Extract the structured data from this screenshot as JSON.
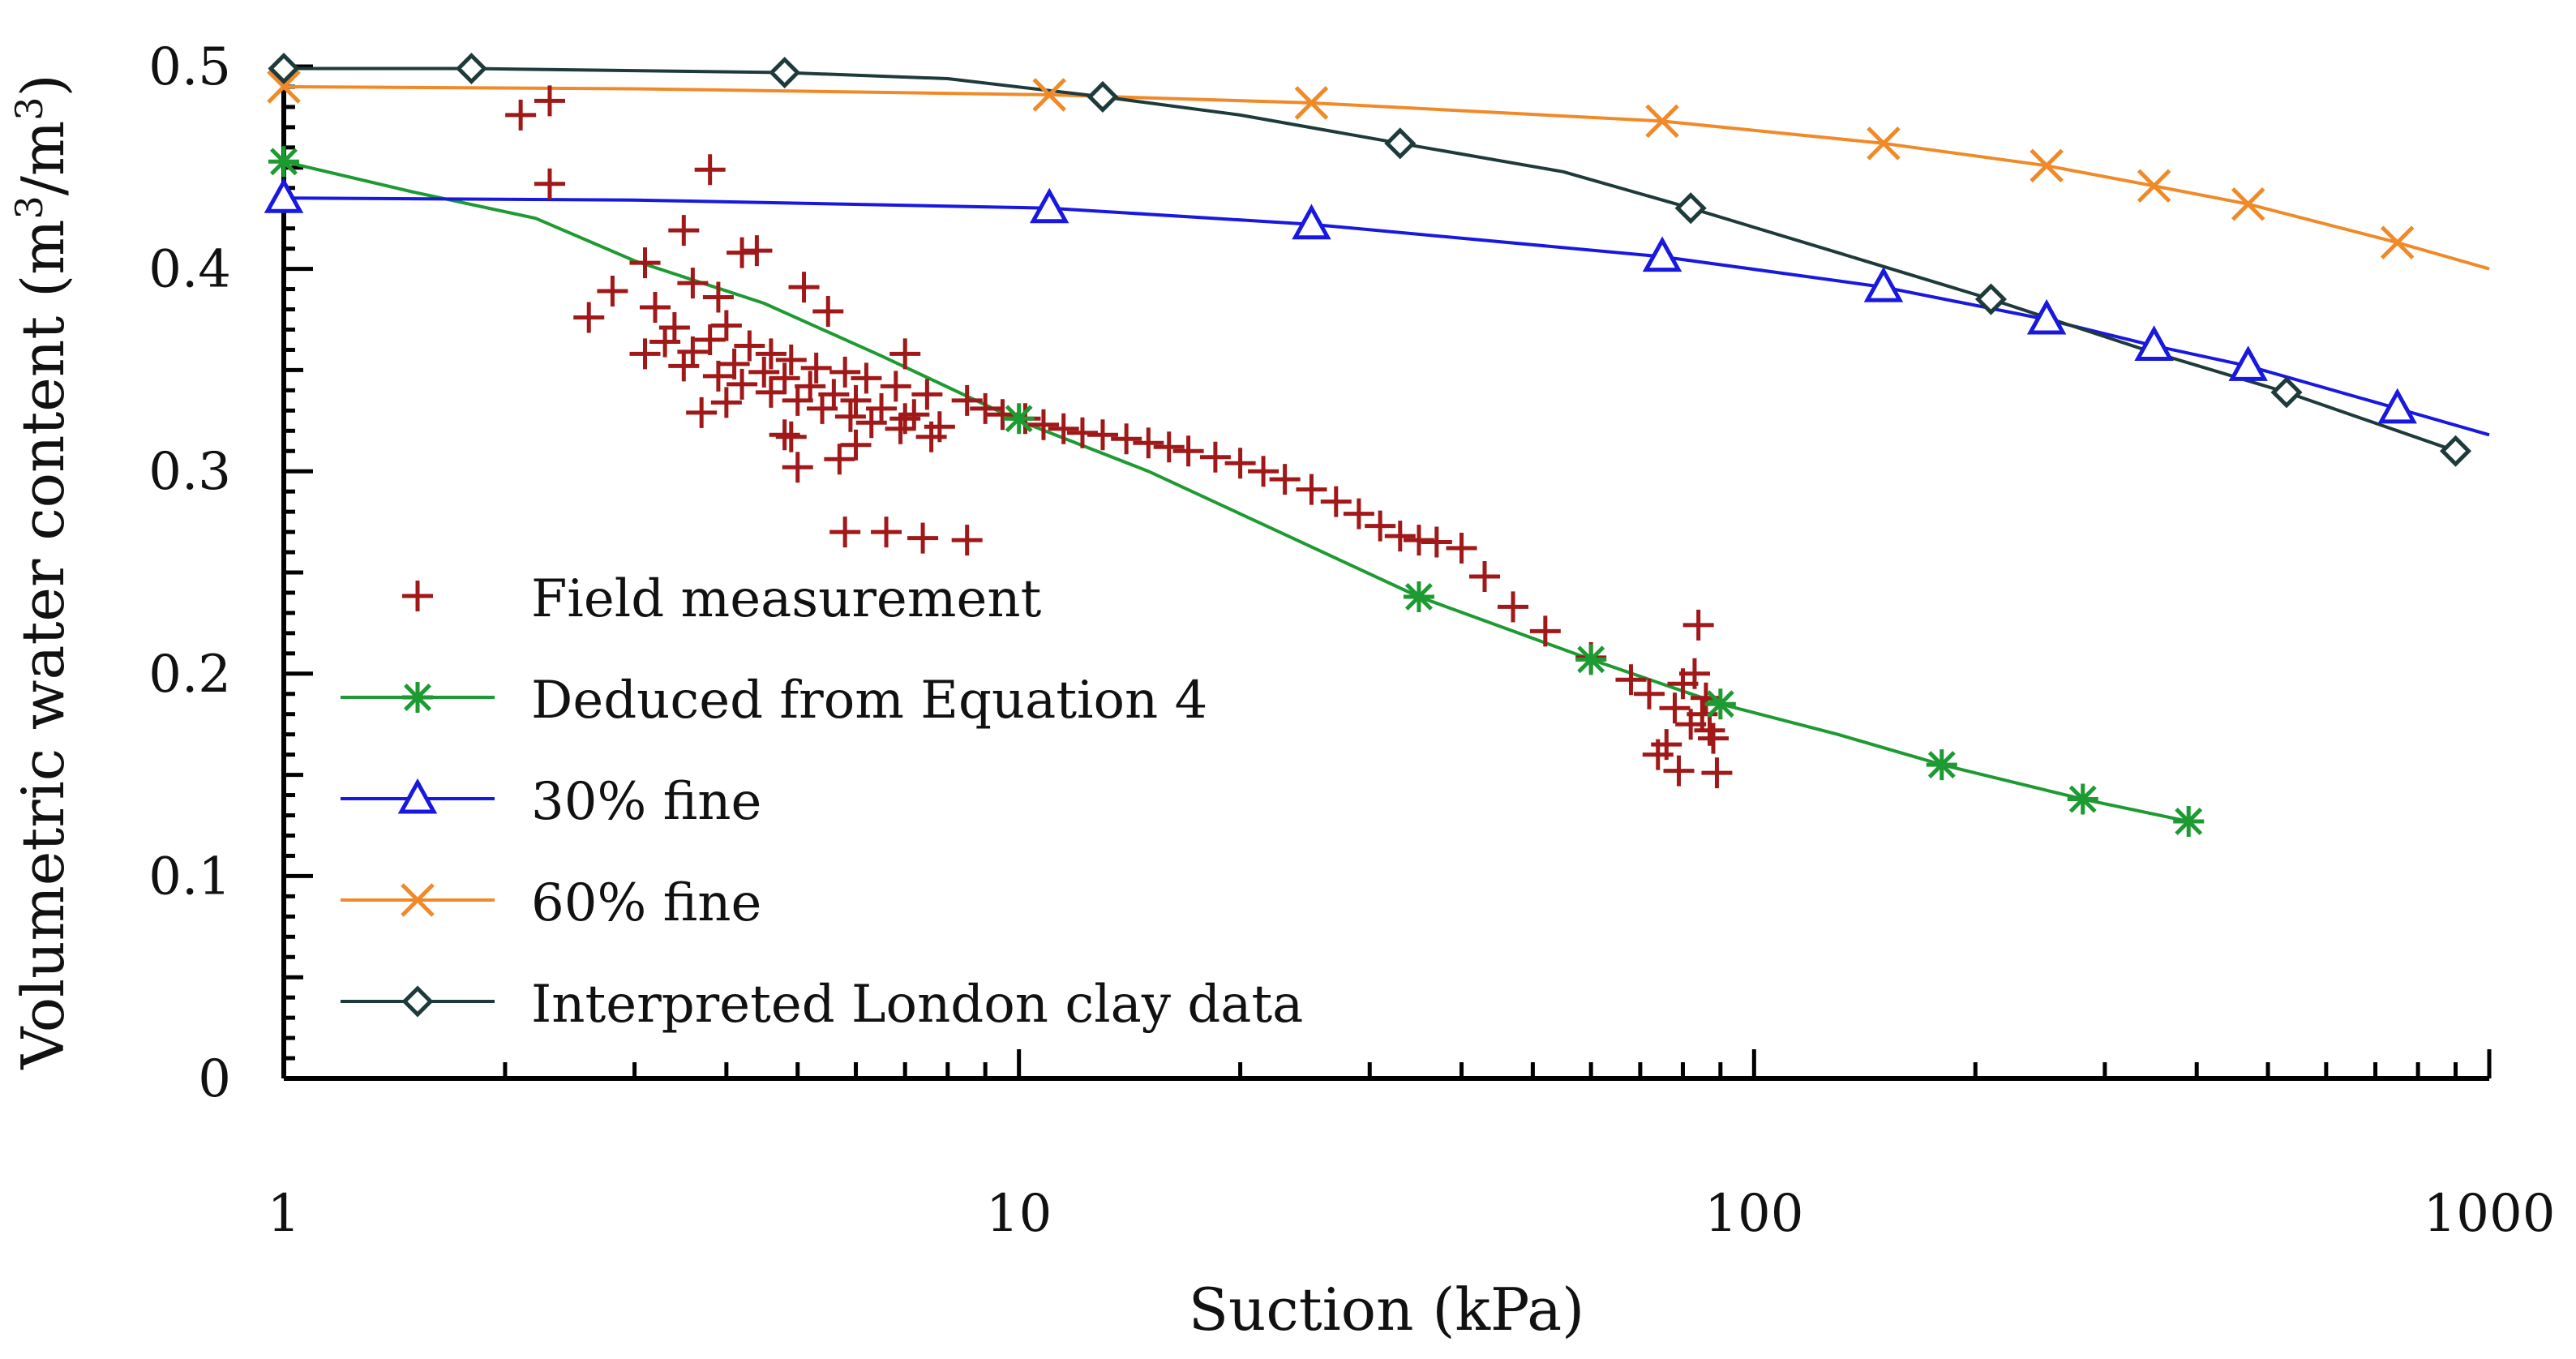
{
  "chart_data": {
    "type": "scatter+line",
    "title": "",
    "xlabel": "Suction (kPa)",
    "ylabel_main": "Volumetric water content (m",
    "ylabel_sup1": "3",
    "ylabel_mid": "/m",
    "ylabel_sup2": "3",
    "ylabel_end": ")",
    "xscale": "log",
    "xlim": [
      1,
      1000
    ],
    "ylim": [
      0,
      0.5
    ],
    "x_ticks": [
      1,
      10,
      100,
      1000
    ],
    "x_tick_labels": [
      "1",
      "10",
      "100",
      "1000"
    ],
    "y_ticks": [
      0,
      0.1,
      0.2,
      0.3,
      0.4,
      0.5
    ],
    "y_tick_labels": [
      "0",
      "0.1",
      "0.2",
      "0.3",
      "0.4",
      "0.5"
    ],
    "legend_position": "lower-left",
    "series": [
      {
        "name": "Field measurement",
        "kind": "scatter",
        "marker": "plus",
        "color": "#a01818",
        "x": [
          2.1,
          2.3,
          2.3,
          3.8,
          4.4,
          5.1,
          5.5,
          3.5,
          4.2,
          2.6,
          2.8,
          3.1,
          3.2,
          3.6,
          3.9,
          3.4,
          3.8,
          4.0,
          4.3,
          4.6,
          4.9,
          5.3,
          5.8,
          6.2,
          6.8,
          7.0,
          7.5,
          3.3,
          3.6,
          4.1,
          4.5,
          4.8,
          5.2,
          5.6,
          6.0,
          6.5,
          7.2,
          7.8,
          3.1,
          3.5,
          3.9,
          4.2,
          4.6,
          5.0,
          5.4,
          5.9,
          6.3,
          6.9,
          7.6,
          3.7,
          4.8,
          5.7,
          6.6,
          7.4,
          4.0,
          4.9,
          5.0,
          5.8,
          6.0,
          7.0,
          8.5,
          8.5,
          9.0,
          9.5,
          10.2,
          10.8,
          11.5,
          12.2,
          13.0,
          14.0,
          15.0,
          16.0,
          17.0,
          18.5,
          20.0,
          21.5,
          23.0,
          25.0,
          27.0,
          29.0,
          31.0,
          33.0,
          35.0,
          37.0,
          40.0,
          43.0,
          47.0,
          52.0,
          60.0,
          68.0,
          72.0,
          78.0,
          82.0,
          85.0,
          87.0,
          89.0,
          76.0,
          80.0,
          84.0,
          86.0,
          88.0,
          74.0,
          79.0,
          83.0
        ],
        "y": [
          0.476,
          0.483,
          0.442,
          0.449,
          0.409,
          0.391,
          0.379,
          0.419,
          0.408,
          0.376,
          0.389,
          0.403,
          0.381,
          0.393,
          0.386,
          0.371,
          0.365,
          0.372,
          0.362,
          0.358,
          0.355,
          0.351,
          0.349,
          0.346,
          0.342,
          0.358,
          0.338,
          0.364,
          0.359,
          0.353,
          0.349,
          0.346,
          0.342,
          0.338,
          0.335,
          0.331,
          0.328,
          0.322,
          0.358,
          0.352,
          0.347,
          0.343,
          0.339,
          0.335,
          0.331,
          0.327,
          0.324,
          0.321,
          0.317,
          0.329,
          0.318,
          0.306,
          0.27,
          0.267,
          0.334,
          0.317,
          0.302,
          0.27,
          0.313,
          0.326,
          0.266,
          0.335,
          0.331,
          0.328,
          0.326,
          0.323,
          0.321,
          0.319,
          0.318,
          0.316,
          0.314,
          0.312,
          0.31,
          0.307,
          0.304,
          0.3,
          0.296,
          0.291,
          0.285,
          0.279,
          0.273,
          0.268,
          0.266,
          0.265,
          0.262,
          0.248,
          0.233,
          0.221,
          0.208,
          0.197,
          0.19,
          0.183,
          0.175,
          0.18,
          0.172,
          0.151,
          0.165,
          0.195,
          0.224,
          0.188,
          0.168,
          0.16,
          0.152,
          0.2
        ]
      },
      {
        "name": "Deduced from Equation 4",
        "kind": "line",
        "marker": "asterisk",
        "color": "#1e9a32",
        "line": {
          "x": [
            1,
            1.5,
            2.2,
            3,
            4.5,
            6.5,
            10,
            15,
            22,
            35,
            60,
            90,
            130,
            180,
            280,
            390
          ],
          "y": [
            0.453,
            0.438,
            0.425,
            0.404,
            0.383,
            0.357,
            0.325,
            0.3,
            0.272,
            0.238,
            0.207,
            0.185,
            0.17,
            0.155,
            0.138,
            0.127
          ]
        },
        "markers": {
          "x": [
            1,
            10,
            35,
            60,
            90,
            180,
            280,
            390
          ],
          "y": [
            0.453,
            0.326,
            0.238,
            0.207,
            0.185,
            0.155,
            0.138,
            0.127
          ]
        }
      },
      {
        "name": "30% fine",
        "kind": "line",
        "marker": "triangle",
        "color": "#1818e0",
        "line": {
          "x": [
            1,
            3,
            11,
            25,
            75,
            150,
            250,
            350,
            470,
            750,
            1000
          ],
          "y": [
            0.435,
            0.434,
            0.43,
            0.422,
            0.406,
            0.391,
            0.375,
            0.362,
            0.352,
            0.331,
            0.318
          ]
        },
        "markers": {
          "x": [
            1,
            11,
            25,
            75,
            150,
            250,
            350,
            470,
            750
          ],
          "y": [
            0.435,
            0.43,
            0.422,
            0.406,
            0.391,
            0.375,
            0.362,
            0.352,
            0.331
          ]
        }
      },
      {
        "name": "60% fine",
        "kind": "line",
        "marker": "cross",
        "color": "#f08a28",
        "line": {
          "x": [
            1,
            3,
            11,
            25,
            75,
            150,
            250,
            350,
            470,
            750,
            1000
          ],
          "y": [
            0.49,
            0.489,
            0.486,
            0.482,
            0.473,
            0.462,
            0.451,
            0.441,
            0.432,
            0.413,
            0.4
          ]
        },
        "markers": {
          "x": [
            1,
            11,
            25,
            75,
            150,
            250,
            350,
            470,
            750
          ],
          "y": [
            0.49,
            0.486,
            0.482,
            0.473,
            0.462,
            0.451,
            0.441,
            0.432,
            0.413
          ]
        }
      },
      {
        "name": "Interpreted London clay data",
        "kind": "line",
        "marker": "diamond",
        "color": "#1e3a3a",
        "line": {
          "x": [
            1,
            1.8,
            4.8,
            8,
            13,
            20,
            33,
            55,
            82,
            130,
            210,
            340,
            530,
            900
          ],
          "y": [
            0.499,
            0.499,
            0.497,
            0.494,
            0.485,
            0.476,
            0.462,
            0.448,
            0.43,
            0.408,
            0.385,
            0.36,
            0.339,
            0.31
          ]
        },
        "markers": {
          "x": [
            1,
            1.8,
            4.8,
            13,
            33,
            82,
            210,
            530,
            900
          ],
          "y": [
            0.499,
            0.499,
            0.497,
            0.485,
            0.462,
            0.43,
            0.385,
            0.339,
            0.31
          ]
        }
      }
    ]
  }
}
